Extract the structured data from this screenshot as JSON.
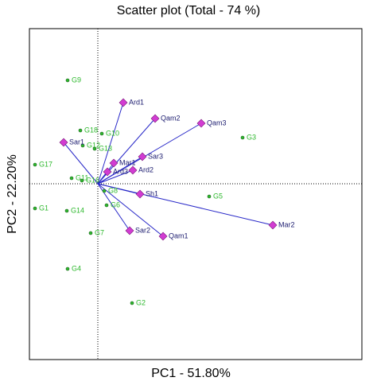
{
  "chart_data": {
    "type": "biplot",
    "title": "Scatter plot (Total - 74 %)",
    "x_label": "PC1 - 51.80%",
    "y_label": "PC2 - 22.20%",
    "xlim": [
      -8.6,
      33.2
    ],
    "ylim": [
      -22.1,
      19.5
    ],
    "points": {
      "color": "#2db82d",
      "labels": [
        "G9",
        "G18",
        "G10",
        "G12",
        "G13",
        "G17",
        "G11",
        "G16",
        "G8",
        "G6",
        "G1",
        "G14",
        "G7",
        "G4",
        "G2",
        "G5",
        "G3"
      ],
      "x": [
        -3.8,
        -2.2,
        0.5,
        -1.9,
        -0.4,
        -7.9,
        -3.3,
        -2.0,
        0.8,
        1.1,
        -7.9,
        -3.9,
        -0.9,
        -3.8,
        4.3,
        14.0,
        18.2
      ],
      "y": [
        13.0,
        6.7,
        6.3,
        4.8,
        4.4,
        2.4,
        0.7,
        0.4,
        -0.9,
        -2.7,
        -3.1,
        -3.4,
        -6.2,
        -10.7,
        -15.0,
        -1.6,
        5.8
      ]
    },
    "vectors": {
      "color": "#d23cd2",
      "line_color": "#2828c8",
      "labels": [
        "Ard1",
        "Qam2",
        "Qam3",
        "Sar1",
        "Sar3",
        "Mar1",
        "Ard2",
        "Ard3",
        "Sh1",
        "Sar2",
        "Qam1",
        "Mar2"
      ],
      "x": [
        3.2,
        7.2,
        13.0,
        -4.3,
        5.6,
        2.0,
        4.4,
        1.2,
        5.3,
        4.0,
        8.2,
        22.0
      ],
      "y": [
        10.2,
        8.2,
        7.6,
        5.2,
        3.4,
        2.6,
        1.7,
        1.5,
        -1.3,
        -5.9,
        -6.6,
        -5.2
      ]
    }
  }
}
